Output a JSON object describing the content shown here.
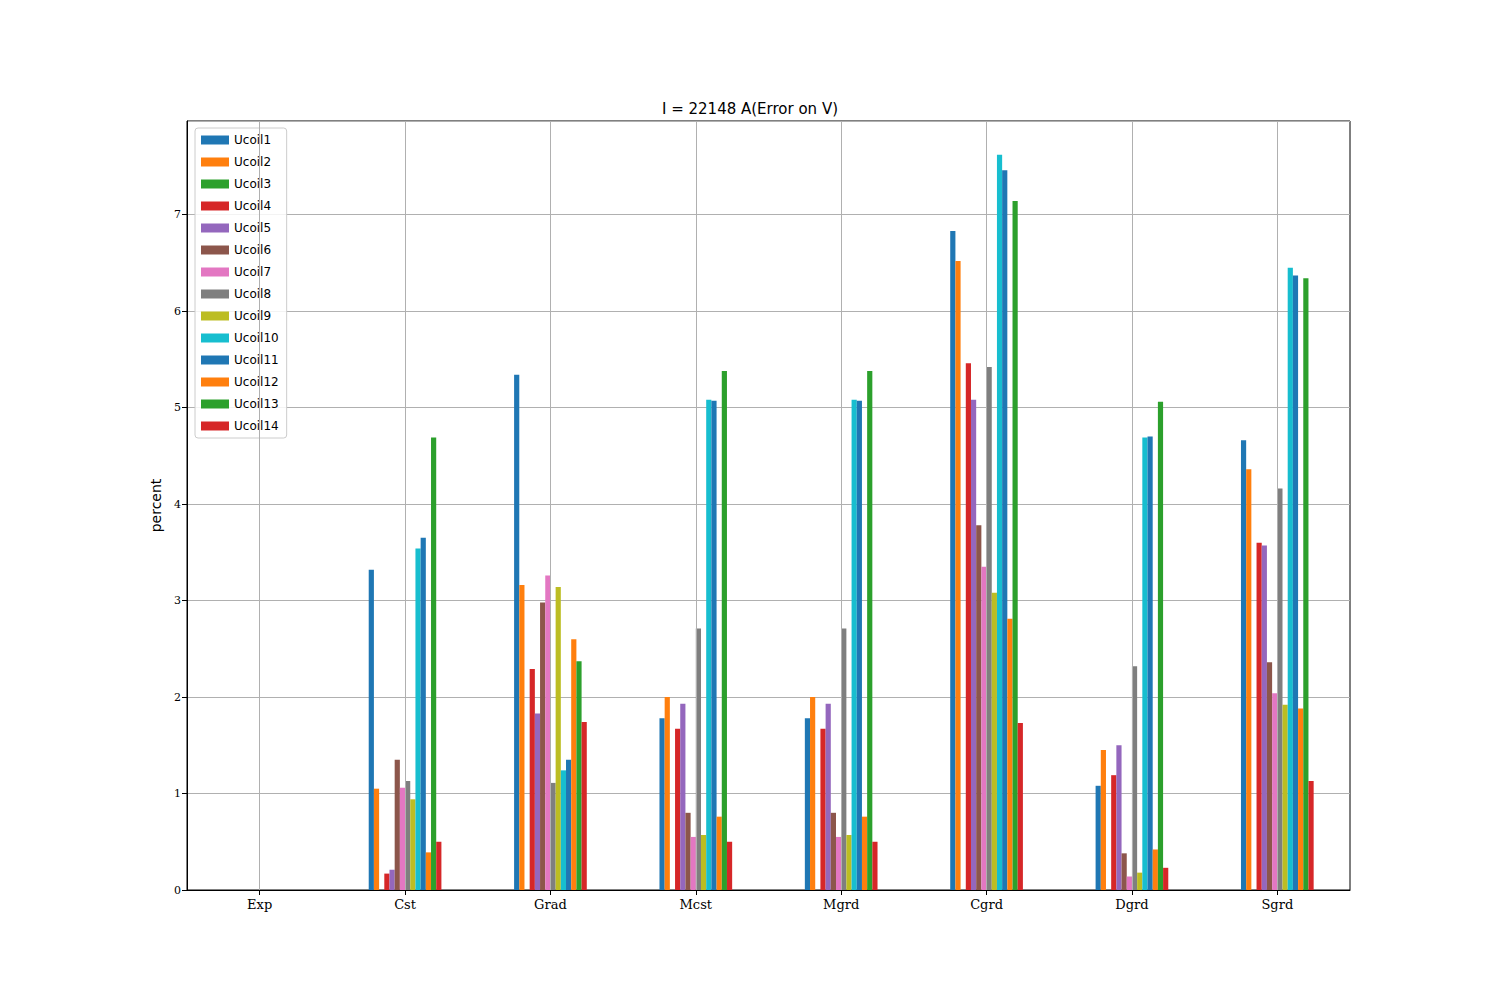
{
  "chart_data": {
    "type": "bar",
    "title": "I = 22148 A(Error on V)",
    "y_label": "percent",
    "categories": [
      "Exp",
      "Cst",
      "Grad",
      "Mcst",
      "Mgrd",
      "Cgrd",
      "Dgrd",
      "Sgrd"
    ],
    "series": [
      {
        "name": "Ucoil1",
        "color": "#1f77b4",
        "values": [
          0,
          3.32,
          5.34,
          1.78,
          1.78,
          6.83,
          1.08,
          4.66
        ]
      },
      {
        "name": "Ucoil2",
        "color": "#ff7f0e",
        "values": [
          0,
          1.05,
          3.16,
          2.0,
          2.0,
          6.52,
          1.45,
          4.36
        ]
      },
      {
        "name": "Ucoil3",
        "color": "#2ca02c",
        "values": [
          0,
          0,
          0,
          0,
          0,
          0,
          0,
          0
        ]
      },
      {
        "name": "Ucoil4",
        "color": "#d62728",
        "values": [
          0,
          0.17,
          2.29,
          1.67,
          1.67,
          5.46,
          1.19,
          3.6
        ]
      },
      {
        "name": "Ucoil5",
        "color": "#9467bd",
        "values": [
          0,
          0.21,
          1.83,
          1.93,
          1.93,
          5.08,
          1.5,
          3.57
        ]
      },
      {
        "name": "Ucoil6",
        "color": "#8c564b",
        "values": [
          0,
          1.35,
          2.98,
          0.8,
          0.8,
          3.78,
          0.38,
          2.36
        ]
      },
      {
        "name": "Ucoil7",
        "color": "#e377c2",
        "values": [
          0,
          1.06,
          3.26,
          0.55,
          0.55,
          3.35,
          0.14,
          2.04
        ]
      },
      {
        "name": "Ucoil8",
        "color": "#7f7f7f",
        "values": [
          0,
          1.13,
          1.11,
          2.71,
          2.71,
          5.42,
          2.32,
          4.16
        ]
      },
      {
        "name": "Ucoil9",
        "color": "#bcbd22",
        "values": [
          0,
          0.94,
          3.14,
          0.57,
          0.57,
          3.08,
          0.18,
          1.92
        ]
      },
      {
        "name": "Ucoil10",
        "color": "#17becf",
        "values": [
          0,
          3.54,
          1.24,
          5.08,
          5.08,
          7.62,
          4.69,
          6.45
        ]
      },
      {
        "name": "Ucoil11",
        "color": "#1f77b4",
        "values": [
          0,
          3.65,
          1.35,
          5.07,
          5.07,
          7.46,
          4.7,
          6.37
        ]
      },
      {
        "name": "Ucoil12",
        "color": "#ff7f0e",
        "values": [
          0,
          0.39,
          2.6,
          0.76,
          0.76,
          2.81,
          0.42,
          1.88
        ]
      },
      {
        "name": "Ucoil13",
        "color": "#2ca02c",
        "values": [
          0,
          4.69,
          2.37,
          5.38,
          5.38,
          7.14,
          5.06,
          6.34
        ]
      },
      {
        "name": "Ucoil14",
        "color": "#d62728",
        "values": [
          0,
          0.5,
          1.74,
          0.5,
          0.5,
          1.73,
          0.23,
          1.13
        ]
      }
    ],
    "ylim": [
      0,
      7.97
    ],
    "yticks": [
      0,
      1,
      2,
      3,
      4,
      5,
      6,
      7
    ],
    "grid": true,
    "legend": "upper left"
  }
}
